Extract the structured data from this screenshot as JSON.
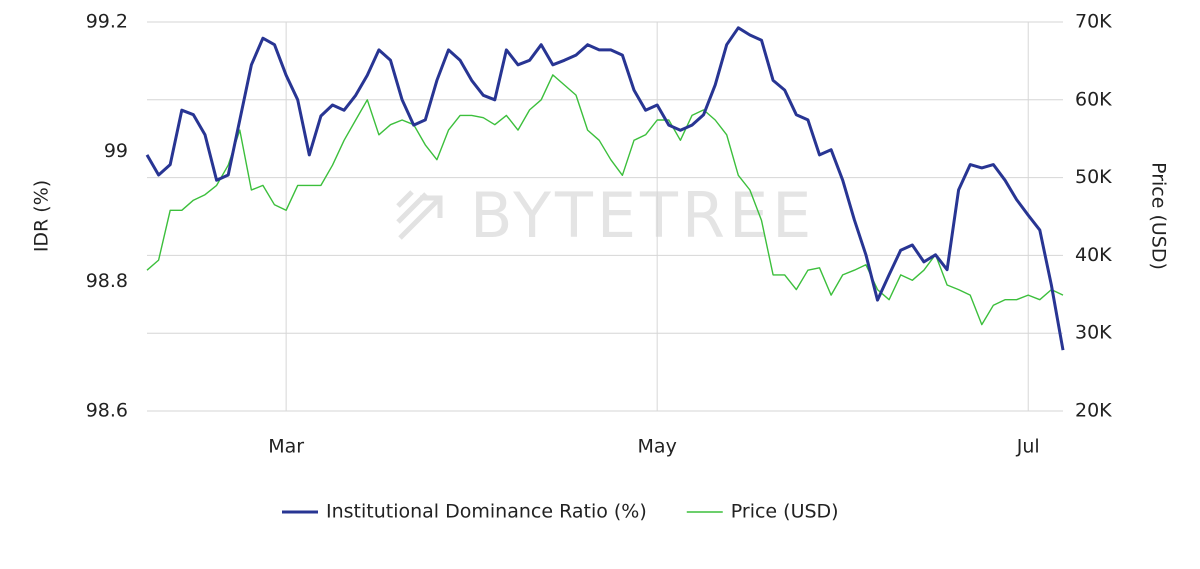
{
  "chart_data": {
    "type": "line",
    "watermark": "BYTETREE",
    "categories": [
      null,
      null,
      null,
      null,
      null,
      null,
      null,
      null,
      null,
      null,
      null,
      null,
      "Mar",
      null,
      null,
      null,
      null,
      null,
      null,
      null,
      null,
      null,
      null,
      null,
      null,
      null,
      null,
      null,
      null,
      null,
      null,
      null,
      null,
      null,
      null,
      null,
      null,
      null,
      null,
      null,
      null,
      null,
      null,
      null,
      "May",
      null,
      null,
      null,
      null,
      null,
      null,
      null,
      null,
      null,
      null,
      null,
      null,
      null,
      null,
      null,
      null,
      null,
      null,
      null,
      null,
      null,
      null,
      null,
      null,
      null,
      null,
      null,
      null,
      null,
      null,
      null,
      "Jul",
      null,
      null,
      null
    ],
    "series": [
      {
        "name": "Institutional Dominance Ratio (%)",
        "color": "#283593",
        "axis": "y",
        "values": [
          98.995,
          98.964,
          98.98,
          99.064,
          99.057,
          99.026,
          98.956,
          98.964,
          99.049,
          99.134,
          99.175,
          99.165,
          99.118,
          99.08,
          98.995,
          99.055,
          99.072,
          99.064,
          99.087,
          99.118,
          99.157,
          99.141,
          99.08,
          99.041,
          99.049,
          99.11,
          99.157,
          99.141,
          99.11,
          99.087,
          99.08,
          99.157,
          99.134,
          99.141,
          99.165,
          99.134,
          99.141,
          99.149,
          99.165,
          99.157,
          99.157,
          99.149,
          99.095,
          99.064,
          99.072,
          99.041,
          99.033,
          99.041,
          99.057,
          99.103,
          99.165,
          99.191,
          99.18,
          99.172,
          99.11,
          99.095,
          99.057,
          99.049,
          98.995,
          99.003,
          98.956,
          98.895,
          98.841,
          98.771,
          98.81,
          98.848,
          98.856,
          98.83,
          98.841,
          98.818,
          98.941,
          98.98,
          98.975,
          98.98,
          98.956,
          98.926,
          98.902,
          98.879,
          98.794,
          98.694
        ]
      },
      {
        "name": "Price (USD)",
        "color": "#3cbf3c",
        "axis": "y2",
        "values": [
          38100,
          39400,
          45800,
          45800,
          47100,
          47800,
          49000,
          51600,
          56100,
          48400,
          49000,
          46500,
          45800,
          49000,
          49000,
          49000,
          51600,
          54800,
          57400,
          60000,
          55500,
          56800,
          57400,
          56800,
          54200,
          52300,
          56100,
          58000,
          58000,
          57700,
          56800,
          58000,
          56100,
          58700,
          60000,
          63200,
          61900,
          60600,
          56100,
          54800,
          52300,
          50300,
          54800,
          55500,
          57400,
          57400,
          54800,
          58000,
          58700,
          57400,
          55500,
          50300,
          48400,
          44500,
          37500,
          37500,
          35600,
          38100,
          38400,
          34900,
          37500,
          38100,
          38800,
          35600,
          34300,
          37500,
          36800,
          38100,
          40100,
          36200,
          35600,
          34900,
          31100,
          33600,
          34300,
          34300,
          34900,
          34300,
          35600,
          34900
        ]
      }
    ],
    "ylabel": "IDR (%)",
    "y2label": "Price (USD)",
    "ylim": [
      98.6,
      99.2
    ],
    "yticks": [
      98.6,
      98.8,
      99,
      99.2
    ],
    "y2lim": [
      20000,
      70000
    ],
    "y2ticks": [
      {
        "value": 20000,
        "label": "20K"
      },
      {
        "value": 30000,
        "label": "30K"
      },
      {
        "value": 40000,
        "label": "40K"
      },
      {
        "value": 50000,
        "label": "50K"
      },
      {
        "value": 60000,
        "label": "60K"
      },
      {
        "value": 70000,
        "label": "70K"
      }
    ],
    "grid": true,
    "legend": "bottom"
  }
}
